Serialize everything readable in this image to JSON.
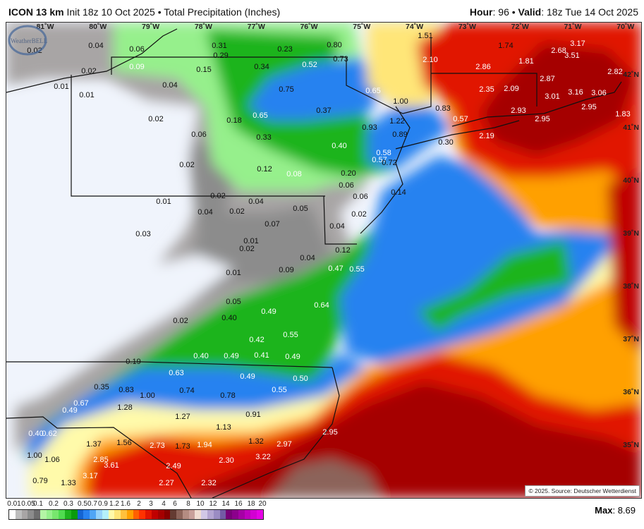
{
  "header": {
    "model": "ICON 13 km",
    "init": "Init 18z 10 Oct 2025",
    "product": "Total Precipitation (Inches)",
    "hour_label": "Hour",
    "hour": "96",
    "valid_label": "Valid",
    "valid": "18z Tue 14 Oct 2025",
    "sep": "•"
  },
  "map": {
    "lon_labels": [
      "81˚W",
      "80˚W",
      "79˚W",
      "78˚W",
      "77˚W",
      "76˚W",
      "75˚W",
      "74˚W",
      "73˚W",
      "72˚W",
      "71˚W",
      "70˚W"
    ],
    "lat_labels": [
      "42˚N",
      "41˚N",
      "40˚N",
      "39˚N",
      "38˚N",
      "37˚N",
      "36˚N",
      "35˚N"
    ],
    "values": [
      "0.02",
      "0.04",
      "0.06",
      "0.09",
      "0.02",
      "0.01",
      "0.01",
      "0.04",
      "0.15",
      "0.31",
      "0.29",
      "0.34",
      "0.23",
      "0.52",
      "0.75",
      "0.65",
      "0.18",
      "0.33",
      "0.37",
      "0.02",
      "0.06",
      "0.02",
      "0.12",
      "0.08",
      "0.02",
      "0.04",
      "0.01",
      "0.04",
      "0.02",
      "0.05",
      "0.07",
      "0.03",
      "0.01",
      "0.02",
      "0.04",
      "0.01",
      "0.09",
      "0.12",
      "0.47",
      "0.55",
      "0.05",
      "0.64",
      "0.49",
      "0.40",
      "0.02",
      "0.55",
      "0.42",
      "0.40",
      "0.49",
      "0.41",
      "0.49",
      "0.19",
      "0.63",
      "0.49",
      "0.50",
      "0.35",
      "0.83",
      "1.00",
      "0.74",
      "0.78",
      "0.55",
      "0.67",
      "0.49",
      "1.28",
      "1.27",
      "0.91",
      "1.13",
      "0.40",
      "0.62",
      "1.37",
      "1.56",
      "2.73",
      "1.73",
      "1.94",
      "1.32",
      "2.97",
      "2.95",
      "1.00",
      "1.06",
      "2.85",
      "3.61",
      "2.49",
      "2.30",
      "3.22",
      "3.17",
      "0.79",
      "1.33",
      "2.27",
      "2.32",
      "1.51",
      "0.80",
      "0.73",
      "2.10",
      "1.74",
      "2.86",
      "1.81",
      "2.68",
      "3.17",
      "3.51",
      "2.82",
      "0.65",
      "2.35",
      "2.09",
      "2.87",
      "1.00",
      "3.01",
      "3.16",
      "3.06",
      "0.83",
      "0.57",
      "2.93",
      "2.95",
      "1.83",
      "1.22",
      "0.93",
      "0.89",
      "2.95",
      "2.19",
      "0.30",
      "0.40",
      "0.58",
      "0.57",
      "0.72",
      "0.20",
      "0.06",
      "0.06",
      "0.14",
      "0.02",
      "0.04"
    ],
    "copyright": "© 2025. Source: Deutscher Wetterdienst",
    "logo": "WeatherBELL"
  },
  "legend": {
    "labels": [
      "0.01",
      "0.05",
      "0.1",
      "0.2",
      "0.3",
      "0.5",
      "0.7",
      "0.9",
      "1.2",
      "1.6",
      "2",
      "3",
      "4",
      "6",
      "8",
      "10",
      "12",
      "14",
      "16",
      "18",
      "20"
    ],
    "colors": [
      "#ffffff",
      "#bdbdbd",
      "#a8a5a5",
      "#8c8c8c",
      "#6e6e6e",
      "#b4f5a5",
      "#96f08c",
      "#78e66e",
      "#50dc50",
      "#1eb41e",
      "#0a9b0a",
      "#1464d2",
      "#2882f0",
      "#50a5f5",
      "#96d2fa",
      "#b4f0fa",
      "#fffaaa",
      "#ffe678",
      "#ffc03c",
      "#ffa000",
      "#ff6000",
      "#ff3200",
      "#e11400",
      "#c00000",
      "#a50000",
      "#870000",
      "#643b32",
      "#8c645a",
      "#b48c82",
      "#c8a09b",
      "#f0dcd2",
      "#d2c8e6",
      "#b4a5d2",
      "#9b8cc3",
      "#735aa5",
      "#780078",
      "#8c008c",
      "#a500a5",
      "#be00be",
      "#d200d2",
      "#e600e6"
    ],
    "max_label": "Max",
    "max": "8.69"
  }
}
